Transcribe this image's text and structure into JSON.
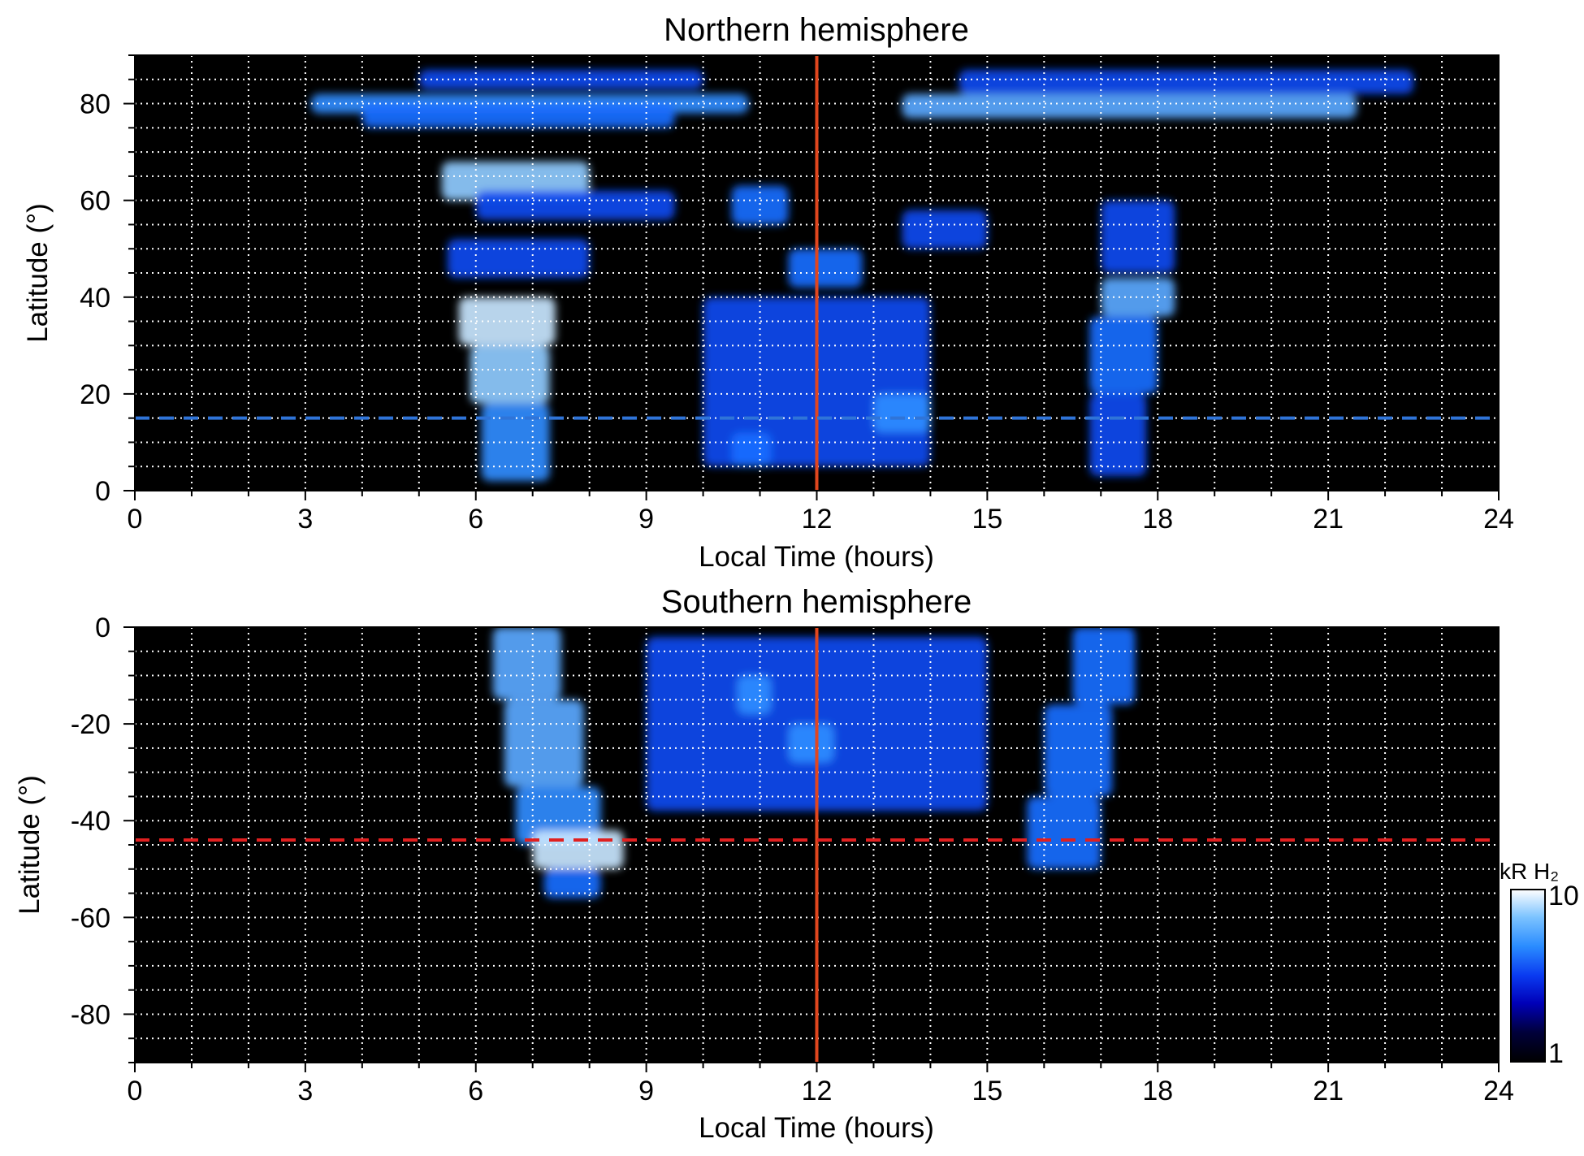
{
  "chart_data": [
    {
      "type": "heatmap",
      "title": "Northern hemisphere",
      "xlabel": "Local Time (hours)",
      "ylabel": "Latitude (°)",
      "xlim": [
        0,
        24
      ],
      "ylim": [
        0,
        90
      ],
      "x_ticks": [
        0,
        3,
        6,
        9,
        12,
        15,
        18,
        21,
        24
      ],
      "x_tick_labels": [
        "0",
        "3",
        "6",
        "9",
        "12",
        "15",
        "18",
        "21",
        "24"
      ],
      "y_ticks": [
        0,
        20,
        40,
        60,
        80
      ],
      "y_tick_labels": [
        "0",
        "20",
        "40",
        "60",
        "80"
      ],
      "grid": true,
      "grid_style": "white dotted, every 1 hour and every 5 degrees",
      "reference_lines": [
        {
          "orientation": "vertical",
          "x": 12,
          "color": "#e0461e",
          "style": "solid"
        },
        {
          "orientation": "horizontal",
          "y": 15,
          "color": "#2f74d8",
          "style": "dashed"
        }
      ],
      "emission_regions": [
        {
          "x": [
            3.1,
            10.8
          ],
          "y": [
            78,
            82
          ],
          "intensity": 5
        },
        {
          "x": [
            4.0,
            9.5
          ],
          "y": [
            75,
            80
          ],
          "intensity": 4
        },
        {
          "x": [
            5.0,
            10.0
          ],
          "y": [
            83,
            87
          ],
          "intensity": 3
        },
        {
          "x": [
            5.4,
            8.0
          ],
          "y": [
            60,
            68
          ],
          "intensity": 7
        },
        {
          "x": [
            6.0,
            9.5
          ],
          "y": [
            56,
            62
          ],
          "intensity": 3
        },
        {
          "x": [
            5.5,
            8.0
          ],
          "y": [
            44,
            52
          ],
          "intensity": 3
        },
        {
          "x": [
            5.7,
            7.4
          ],
          "y": [
            30,
            40
          ],
          "intensity": 8
        },
        {
          "x": [
            5.9,
            7.3
          ],
          "y": [
            18,
            30
          ],
          "intensity": 7
        },
        {
          "x": [
            6.1,
            7.3
          ],
          "y": [
            2,
            18
          ],
          "intensity": 5
        },
        {
          "x": [
            13.5,
            21.5
          ],
          "y": [
            77,
            82
          ],
          "intensity": 6
        },
        {
          "x": [
            14.5,
            22.5
          ],
          "y": [
            82,
            87
          ],
          "intensity": 3
        },
        {
          "x": [
            17.0,
            18.3
          ],
          "y": [
            36,
            44
          ],
          "intensity": 6
        },
        {
          "x": [
            16.8,
            18.0
          ],
          "y": [
            20,
            36
          ],
          "intensity": 4
        },
        {
          "x": [
            16.8,
            17.8
          ],
          "y": [
            3,
            20
          ],
          "intensity": 3
        },
        {
          "x": [
            17.0,
            18.3
          ],
          "y": [
            45,
            60
          ],
          "intensity": 3
        },
        {
          "x": [
            10.5,
            11.5
          ],
          "y": [
            55,
            63
          ],
          "intensity": 4
        },
        {
          "x": [
            11.5,
            12.8
          ],
          "y": [
            42,
            50
          ],
          "intensity": 4
        },
        {
          "x": [
            13.5,
            15.0
          ],
          "y": [
            50,
            58
          ],
          "intensity": 3
        },
        {
          "x": [
            10.0,
            14.0
          ],
          "y": [
            5,
            40
          ],
          "intensity": 3
        },
        {
          "x": [
            13.0,
            14.0
          ],
          "y": [
            12,
            20
          ],
          "intensity": 5
        },
        {
          "x": [
            10.5,
            11.2
          ],
          "y": [
            5,
            12
          ],
          "intensity": 4
        }
      ]
    },
    {
      "type": "heatmap",
      "title": "Southern hemisphere",
      "xlabel": "Local Time (hours)",
      "ylabel": "Latitude (°)",
      "xlim": [
        0,
        24
      ],
      "ylim": [
        -90,
        0
      ],
      "x_ticks": [
        0,
        3,
        6,
        9,
        12,
        15,
        18,
        21,
        24
      ],
      "x_tick_labels": [
        "0",
        "3",
        "6",
        "9",
        "12",
        "15",
        "18",
        "21",
        "24"
      ],
      "y_ticks": [
        0,
        -20,
        -40,
        -60,
        -80
      ],
      "y_tick_labels": [
        "0",
        "-20",
        "-40",
        "-60",
        "-80"
      ],
      "grid": true,
      "grid_style": "white dotted, every 1 hour and every 5 degrees",
      "reference_lines": [
        {
          "orientation": "vertical",
          "x": 12,
          "color": "#e0461e",
          "style": "solid"
        },
        {
          "orientation": "horizontal",
          "y": -44,
          "color": "#e02020",
          "style": "dashed"
        }
      ],
      "emission_regions": [
        {
          "x": [
            6.3,
            7.5
          ],
          "y": [
            -15,
            0
          ],
          "intensity": 6
        },
        {
          "x": [
            6.5,
            7.9
          ],
          "y": [
            -33,
            -15
          ],
          "intensity": 6
        },
        {
          "x": [
            6.7,
            8.2
          ],
          "y": [
            -45,
            -33
          ],
          "intensity": 5
        },
        {
          "x": [
            7.0,
            8.6
          ],
          "y": [
            -50,
            -42
          ],
          "intensity": 8
        },
        {
          "x": [
            7.2,
            8.2
          ],
          "y": [
            -56,
            -50
          ],
          "intensity": 4
        },
        {
          "x": [
            16.5,
            17.6
          ],
          "y": [
            -16,
            0
          ],
          "intensity": 4
        },
        {
          "x": [
            16.0,
            17.2
          ],
          "y": [
            -35,
            -16
          ],
          "intensity": 4
        },
        {
          "x": [
            15.7,
            17.0
          ],
          "y": [
            -50,
            -35
          ],
          "intensity": 4
        },
        {
          "x": [
            9.0,
            15.0
          ],
          "y": [
            -38,
            -2
          ],
          "intensity": 3
        },
        {
          "x": [
            11.5,
            12.3
          ],
          "y": [
            -28,
            -20
          ],
          "intensity": 5
        },
        {
          "x": [
            10.6,
            11.2
          ],
          "y": [
            -18,
            -10
          ],
          "intensity": 5
        }
      ]
    }
  ],
  "colorbar": {
    "label": "kR H₂",
    "scale": "log",
    "min_label": "1",
    "max_label": "10",
    "colors": [
      "#000000",
      "#00003a",
      "#0000b8",
      "#0a3af0",
      "#2a8cff",
      "#7cc3ff",
      "#ffffff"
    ]
  }
}
